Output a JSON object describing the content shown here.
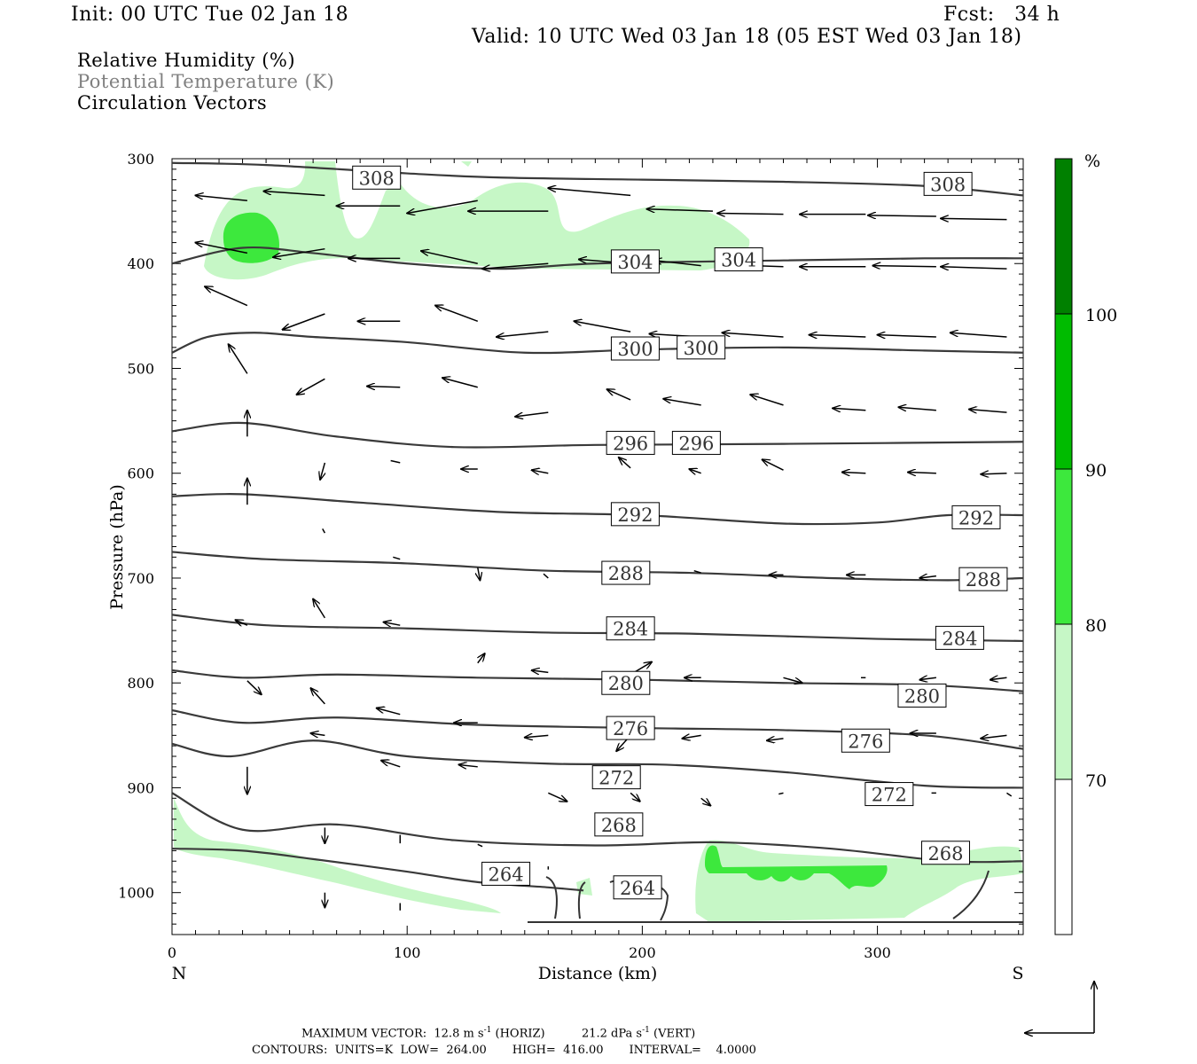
{
  "header": {
    "init": "Init: 00 UTC Tue 02 Jan 18",
    "fcst": "Fcst:   34 h",
    "valid": "Valid: 10 UTC Wed 03 Jan 18 (05 EST Wed 03 Jan 18)"
  },
  "legend_lines": {
    "rh": "Relative Humidity (%)",
    "theta": "Potential Temperature (K)",
    "vectors": "Circulation Vectors"
  },
  "footer": {
    "max_vector_label": "MAXIMUM VECTOR:",
    "horiz_value": "12.8 m s",
    "horiz_unit": " (HORIZ)",
    "vert_value": "21.2 dPa s",
    "vert_unit": " (VERT)",
    "exponent": "-1",
    "contours": "CONTOURS:  UNITS=K  LOW=  264.00       HIGH=  416.00       INTERVAL=    4.0000"
  },
  "colorbar": {
    "unit": "%",
    "levels": [
      "70",
      "80",
      "90",
      "100"
    ],
    "colors": [
      "#ffffff",
      "#c6f7c6",
      "#3de83d",
      "#00bb00",
      "#008000"
    ]
  },
  "chart_data": {
    "type": "contour",
    "title": "",
    "xlabel": "Distance (km)",
    "ylabel": "Pressure (hPa)",
    "xlim": [
      0,
      362
    ],
    "ylim": [
      1040,
      300
    ],
    "x_ticks": [
      "0",
      "100",
      "200",
      "300"
    ],
    "y_ticks": [
      "300",
      "400",
      "500",
      "600",
      "700",
      "800",
      "900",
      "1000"
    ],
    "x_end_labels": {
      "left": "N",
      "right": "S"
    },
    "theta_contours": [
      {
        "level": "308",
        "x": [
          0,
          40,
          100,
          140,
          200,
          260,
          320,
          362
        ],
        "p": [
          304,
          306,
          314,
          318,
          320,
          322,
          326,
          335
        ],
        "labels": [
          {
            "x": 87,
            "p": 318
          },
          {
            "x": 330,
            "p": 324
          }
        ]
      },
      {
        "level": "304",
        "x": [
          0,
          30,
          60,
          100,
          140,
          180,
          260,
          320,
          362
        ],
        "p": [
          400,
          385,
          390,
          400,
          405,
          400,
          397,
          395,
          395
        ],
        "labels": [
          {
            "x": 197,
            "p": 398
          },
          {
            "x": 241,
            "p": 396
          }
        ]
      },
      {
        "level": "300",
        "x": [
          0,
          15,
          35,
          60,
          100,
          150,
          200,
          260,
          320,
          362
        ],
        "p": [
          485,
          470,
          466,
          470,
          475,
          485,
          482,
          480,
          483,
          485
        ],
        "labels": [
          {
            "x": 197,
            "p": 481
          },
          {
            "x": 225,
            "p": 480
          }
        ]
      },
      {
        "level": "296",
        "x": [
          0,
          30,
          70,
          120,
          180,
          260,
          362
        ],
        "p": [
          560,
          552,
          565,
          575,
          573,
          572,
          570
        ],
        "labels": [
          {
            "x": 195,
            "p": 571
          },
          {
            "x": 223,
            "p": 571
          }
        ]
      },
      {
        "level": "292",
        "x": [
          0,
          30,
          80,
          140,
          200,
          260,
          300,
          330,
          362
        ],
        "p": [
          622,
          620,
          628,
          637,
          640,
          648,
          647,
          640,
          640
        ],
        "labels": [
          {
            "x": 197,
            "p": 639
          },
          {
            "x": 342,
            "p": 642
          }
        ]
      },
      {
        "level": "288",
        "x": [
          0,
          40,
          100,
          160,
          220,
          280,
          330,
          362
        ],
        "p": [
          675,
          682,
          686,
          693,
          695,
          700,
          702,
          700
        ],
        "labels": [
          {
            "x": 193,
            "p": 695
          },
          {
            "x": 345,
            "p": 701
          }
        ]
      },
      {
        "level": "284",
        "x": [
          0,
          40,
          100,
          160,
          220,
          300,
          362
        ],
        "p": [
          735,
          745,
          748,
          752,
          753,
          758,
          760
        ],
        "labels": [
          {
            "x": 195,
            "p": 748
          },
          {
            "x": 335,
            "p": 757
          }
        ]
      },
      {
        "level": "280",
        "x": [
          0,
          30,
          70,
          130,
          200,
          260,
          320,
          362
        ],
        "p": [
          788,
          795,
          792,
          795,
          797,
          800,
          802,
          808
        ],
        "labels": [
          {
            "x": 193,
            "p": 800
          },
          {
            "x": 319,
            "p": 812
          }
        ]
      },
      {
        "level": "276",
        "x": [
          0,
          30,
          70,
          130,
          200,
          260,
          320,
          362
        ],
        "p": [
          826,
          838,
          833,
          840,
          843,
          845,
          850,
          863
        ],
        "labels": [
          {
            "x": 195,
            "p": 843
          },
          {
            "x": 295,
            "p": 855
          }
        ]
      },
      {
        "level": "272",
        "x": [
          0,
          25,
          60,
          100,
          160,
          210,
          260,
          320,
          362
        ],
        "p": [
          858,
          870,
          855,
          870,
          877,
          878,
          885,
          898,
          900
        ],
        "labels": [
          {
            "x": 189,
            "p": 890
          },
          {
            "x": 305,
            "p": 906
          }
        ]
      },
      {
        "level": "268",
        "x": [
          0,
          30,
          70,
          120,
          180,
          230,
          280,
          330,
          362
        ],
        "p": [
          905,
          940,
          935,
          950,
          955,
          952,
          958,
          970,
          970
        ],
        "labels": [
          {
            "x": 190,
            "p": 935
          },
          {
            "x": 329,
            "p": 962
          }
        ]
      },
      {
        "level": "264",
        "x": [
          0,
          30,
          60,
          100,
          130,
          160,
          175
        ],
        "p": [
          958,
          960,
          968,
          980,
          990,
          995,
          998
        ],
        "labels": [
          {
            "x": 142,
            "p": 982
          },
          {
            "x": 198,
            "p": 995
          }
        ]
      }
    ],
    "rh_shading": [
      {
        "range": "70-80",
        "region": "upper layer 300-410 hPa, 10-250 km"
      },
      {
        "range": "80-90",
        "region": "core near 30 km, 360-385 hPa"
      },
      {
        "range": "70-80",
        "region": "lower layer 950-1030 hPa, 220-362 km"
      },
      {
        "range": "80-90",
        "region": "near 975-1000 hPa, 230-305 km"
      }
    ],
    "vectors": [
      {
        "x": 32,
        "p": 340,
        "u": -22,
        "w": 5
      },
      {
        "x": 65,
        "p": 335,
        "u": -26,
        "w": 4
      },
      {
        "x": 97,
        "p": 345,
        "u": -27,
        "w": 0
      },
      {
        "x": 130,
        "p": 340,
        "u": -30,
        "w": -12
      },
      {
        "x": 160,
        "p": 350,
        "u": -34,
        "w": 0
      },
      {
        "x": 195,
        "p": 335,
        "u": -35,
        "w": 7
      },
      {
        "x": 230,
        "p": 350,
        "u": -28,
        "w": 2
      },
      {
        "x": 260,
        "p": 353,
        "u": -28,
        "w": 1
      },
      {
        "x": 295,
        "p": 353,
        "u": -28,
        "w": 0
      },
      {
        "x": 325,
        "p": 355,
        "u": -29,
        "w": 1
      },
      {
        "x": 355,
        "p": 358,
        "u": -28,
        "w": 1
      },
      {
        "x": 32,
        "p": 390,
        "u": -22,
        "w": 10
      },
      {
        "x": 65,
        "p": 386,
        "u": -22,
        "w": -8
      },
      {
        "x": 97,
        "p": 395,
        "u": -22,
        "w": 0
      },
      {
        "x": 130,
        "p": 400,
        "u": -24,
        "w": 12
      },
      {
        "x": 160,
        "p": 400,
        "u": -28,
        "w": -5
      },
      {
        "x": 195,
        "p": 400,
        "u": -22,
        "w": 4
      },
      {
        "x": 225,
        "p": 402,
        "u": -20,
        "w": 5
      },
      {
        "x": 260,
        "p": 403,
        "u": -27,
        "w": 2
      },
      {
        "x": 295,
        "p": 403,
        "u": -28,
        "w": 0
      },
      {
        "x": 325,
        "p": 403,
        "u": -27,
        "w": 1
      },
      {
        "x": 355,
        "p": 405,
        "u": -28,
        "w": 2
      },
      {
        "x": 32,
        "p": 440,
        "u": -18,
        "w": 18
      },
      {
        "x": 65,
        "p": 448,
        "u": -18,
        "w": -15
      },
      {
        "x": 97,
        "p": 455,
        "u": -18,
        "w": 0
      },
      {
        "x": 130,
        "p": 455,
        "u": -18,
        "w": 15
      },
      {
        "x": 160,
        "p": 465,
        "u": -22,
        "w": -5
      },
      {
        "x": 195,
        "p": 465,
        "u": -24,
        "w": 10
      },
      {
        "x": 225,
        "p": 470,
        "u": -22,
        "w": 3
      },
      {
        "x": 260,
        "p": 470,
        "u": -26,
        "w": 4
      },
      {
        "x": 295,
        "p": 470,
        "u": -24,
        "w": 2
      },
      {
        "x": 325,
        "p": 470,
        "u": -25,
        "w": 2
      },
      {
        "x": 355,
        "p": 470,
        "u": -24,
        "w": 4
      },
      {
        "x": 32,
        "p": 505,
        "u": -8,
        "w": 28
      },
      {
        "x": 65,
        "p": 510,
        "u": -12,
        "w": -15
      },
      {
        "x": 97,
        "p": 518,
        "u": -14,
        "w": 1
      },
      {
        "x": 130,
        "p": 518,
        "u": -15,
        "w": 9
      },
      {
        "x": 160,
        "p": 542,
        "u": -14,
        "w": -4
      },
      {
        "x": 195,
        "p": 530,
        "u": -10,
        "w": 10
      },
      {
        "x": 225,
        "p": 535,
        "u": -16,
        "w": 6
      },
      {
        "x": 260,
        "p": 535,
        "u": -14,
        "w": 10
      },
      {
        "x": 295,
        "p": 540,
        "u": -14,
        "w": 2
      },
      {
        "x": 325,
        "p": 540,
        "u": -16,
        "w": 3
      },
      {
        "x": 355,
        "p": 542,
        "u": -16,
        "w": 3
      },
      {
        "x": 32,
        "p": 565,
        "u": 0,
        "w": 25
      },
      {
        "x": 65,
        "p": 590,
        "u": -2,
        "w": -16
      },
      {
        "x": 97,
        "p": 590,
        "u": -4,
        "w": 2
      },
      {
        "x": 130,
        "p": 596,
        "u": -7,
        "w": 0
      },
      {
        "x": 160,
        "p": 600,
        "u": -7,
        "w": 3
      },
      {
        "x": 195,
        "p": 595,
        "u": -5,
        "w": 10
      },
      {
        "x": 225,
        "p": 600,
        "u": -5,
        "w": 4
      },
      {
        "x": 260,
        "p": 597,
        "u": -9,
        "w": 10
      },
      {
        "x": 295,
        "p": 600,
        "u": -10,
        "w": 1
      },
      {
        "x": 325,
        "p": 600,
        "u": -12,
        "w": 1
      },
      {
        "x": 355,
        "p": 600,
        "u": -11,
        "w": -1
      },
      {
        "x": 32,
        "p": 630,
        "u": 0,
        "w": 25
      },
      {
        "x": 65,
        "p": 657,
        "u": -1,
        "w": 4
      },
      {
        "x": 97,
        "p": 682,
        "u": -3,
        "w": 2
      },
      {
        "x": 130,
        "p": 690,
        "u": 1,
        "w": -12
      },
      {
        "x": 160,
        "p": 700,
        "u": -2,
        "w": 4
      },
      {
        "x": 195,
        "p": 702,
        "u": -3,
        "w": 0
      },
      {
        "x": 225,
        "p": 695,
        "u": -3,
        "w": 2
      },
      {
        "x": 260,
        "p": 697,
        "u": -6,
        "w": 0
      },
      {
        "x": 295,
        "p": 697,
        "u": -8,
        "w": 0
      },
      {
        "x": 325,
        "p": 698,
        "u": -7,
        "w": -2
      },
      {
        "x": 355,
        "p": 695,
        "u": -8,
        "w": -2
      },
      {
        "x": 32,
        "p": 745,
        "u": -5,
        "w": 5
      },
      {
        "x": 65,
        "p": 738,
        "u": -5,
        "w": 18
      },
      {
        "x": 97,
        "p": 745,
        "u": -7,
        "w": 3
      },
      {
        "x": 130,
        "p": 781,
        "u": 3,
        "w": 9
      },
      {
        "x": 160,
        "p": 790,
        "u": -7,
        "w": 2
      },
      {
        "x": 195,
        "p": 792,
        "u": 9,
        "w": 12
      },
      {
        "x": 225,
        "p": 795,
        "u": -7,
        "w": 0
      },
      {
        "x": 260,
        "p": 795,
        "u": 8,
        "w": -5
      },
      {
        "x": 295,
        "p": 795,
        "u": -2,
        "w": 0
      },
      {
        "x": 325,
        "p": 795,
        "u": -7,
        "w": -2
      },
      {
        "x": 355,
        "p": 795,
        "u": -7,
        "w": -2
      },
      {
        "x": 32,
        "p": 798,
        "u": 6,
        "w": -13
      },
      {
        "x": 65,
        "p": 820,
        "u": -6,
        "w": 15
      },
      {
        "x": 97,
        "p": 830,
        "u": -10,
        "w": 6
      },
      {
        "x": 130,
        "p": 838,
        "u": -10,
        "w": 0
      },
      {
        "x": 160,
        "p": 850,
        "u": -10,
        "w": -2
      },
      {
        "x": 195,
        "p": 850,
        "u": -6,
        "w": -15
      },
      {
        "x": 225,
        "p": 850,
        "u": -8,
        "w": -3
      },
      {
        "x": 260,
        "p": 853,
        "u": -7,
        "w": -2
      },
      {
        "x": 295,
        "p": 850,
        "u": 2,
        "w": 0
      },
      {
        "x": 325,
        "p": 848,
        "u": -11,
        "w": 0
      },
      {
        "x": 355,
        "p": 850,
        "u": -11,
        "w": -3
      },
      {
        "x": 32,
        "p": 880,
        "u": 0,
        "w": -26
      },
      {
        "x": 65,
        "p": 850,
        "u": -6,
        "w": 2
      },
      {
        "x": 97,
        "p": 880,
        "u": -8,
        "w": 6
      },
      {
        "x": 130,
        "p": 880,
        "u": -8,
        "w": 2
      },
      {
        "x": 160,
        "p": 905,
        "u": 8,
        "w": -8
      },
      {
        "x": 195,
        "p": 905,
        "u": 4,
        "w": -8
      },
      {
        "x": 225,
        "p": 910,
        "u": 4,
        "w": -7
      },
      {
        "x": 260,
        "p": 905,
        "u": -2,
        "w": -1
      },
      {
        "x": 325,
        "p": 905,
        "u": -2,
        "w": 0
      },
      {
        "x": 355,
        "p": 905,
        "u": 2,
        "w": -3
      },
      {
        "x": 65,
        "p": 938,
        "u": 0,
        "w": -15
      },
      {
        "x": 97,
        "p": 945,
        "u": 0,
        "w": -8
      },
      {
        "x": 130,
        "p": 954,
        "u": 2,
        "w": -2
      },
      {
        "x": 160,
        "p": 975,
        "u": 0,
        "w": -3
      },
      {
        "x": 65,
        "p": 1000,
        "u": 0,
        "w": -14
      },
      {
        "x": 97,
        "p": 1010,
        "u": 0,
        "w": -7
      }
    ]
  }
}
